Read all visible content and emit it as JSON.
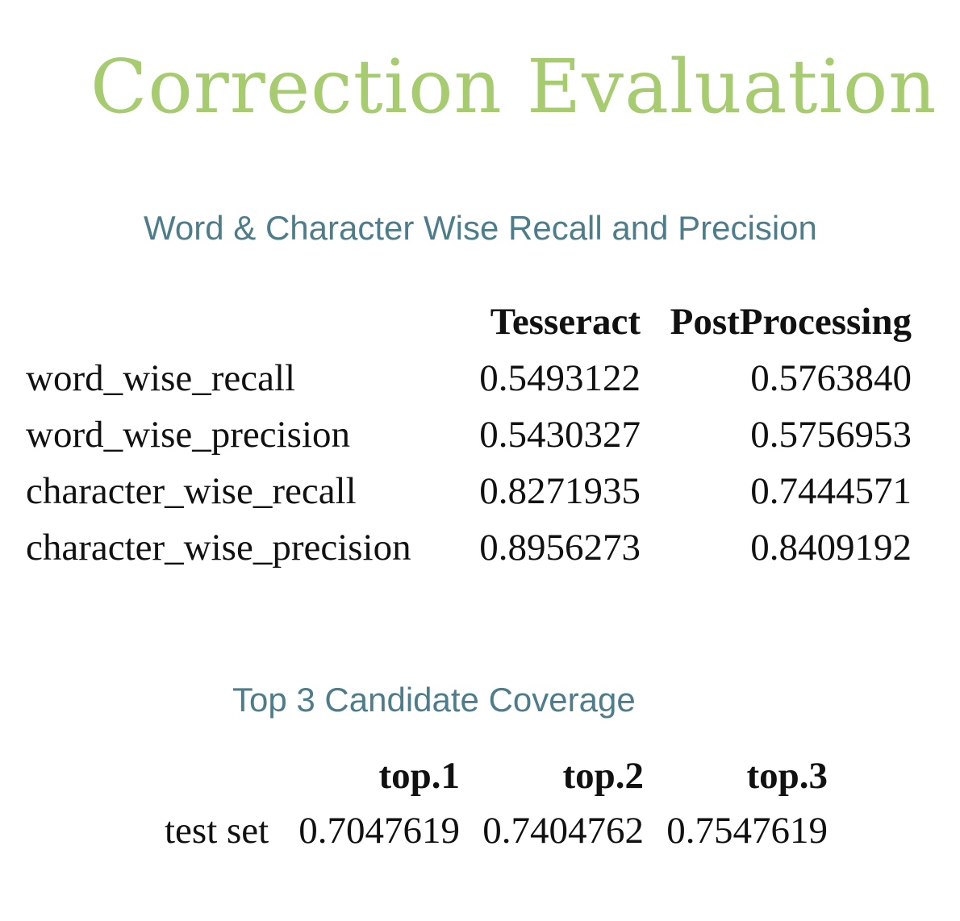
{
  "colors": {
    "title": "#a6cc6f",
    "subtitle": "#4d7d8a",
    "text": "#111111",
    "background": "#ffffff"
  },
  "title": "Correction  Evaluation",
  "section1": {
    "heading": "Word & Character Wise Recall and Precision",
    "table": {
      "columns": [
        "Tesseract",
        "PostProcessing"
      ],
      "rows": [
        {
          "name": "word_wise_recall",
          "tesseract": "0.5493122",
          "post": "0.5763840"
        },
        {
          "name": "word_wise_precision",
          "tesseract": "0.5430327",
          "post": "0.5756953"
        },
        {
          "name": "character_wise_recall",
          "tesseract": "0.8271935",
          "post": "0.7444571"
        },
        {
          "name": "character_wise_precision",
          "tesseract": "0.8956273",
          "post": "0.8409192"
        }
      ]
    }
  },
  "section2": {
    "heading": "Top 3 Candidate Coverage",
    "table": {
      "columns": [
        "top.1",
        "top.2",
        "top.3"
      ],
      "rows": [
        {
          "name": "test set",
          "values": [
            "0.7047619",
            "0.7404762",
            "0.7547619"
          ]
        }
      ]
    }
  }
}
